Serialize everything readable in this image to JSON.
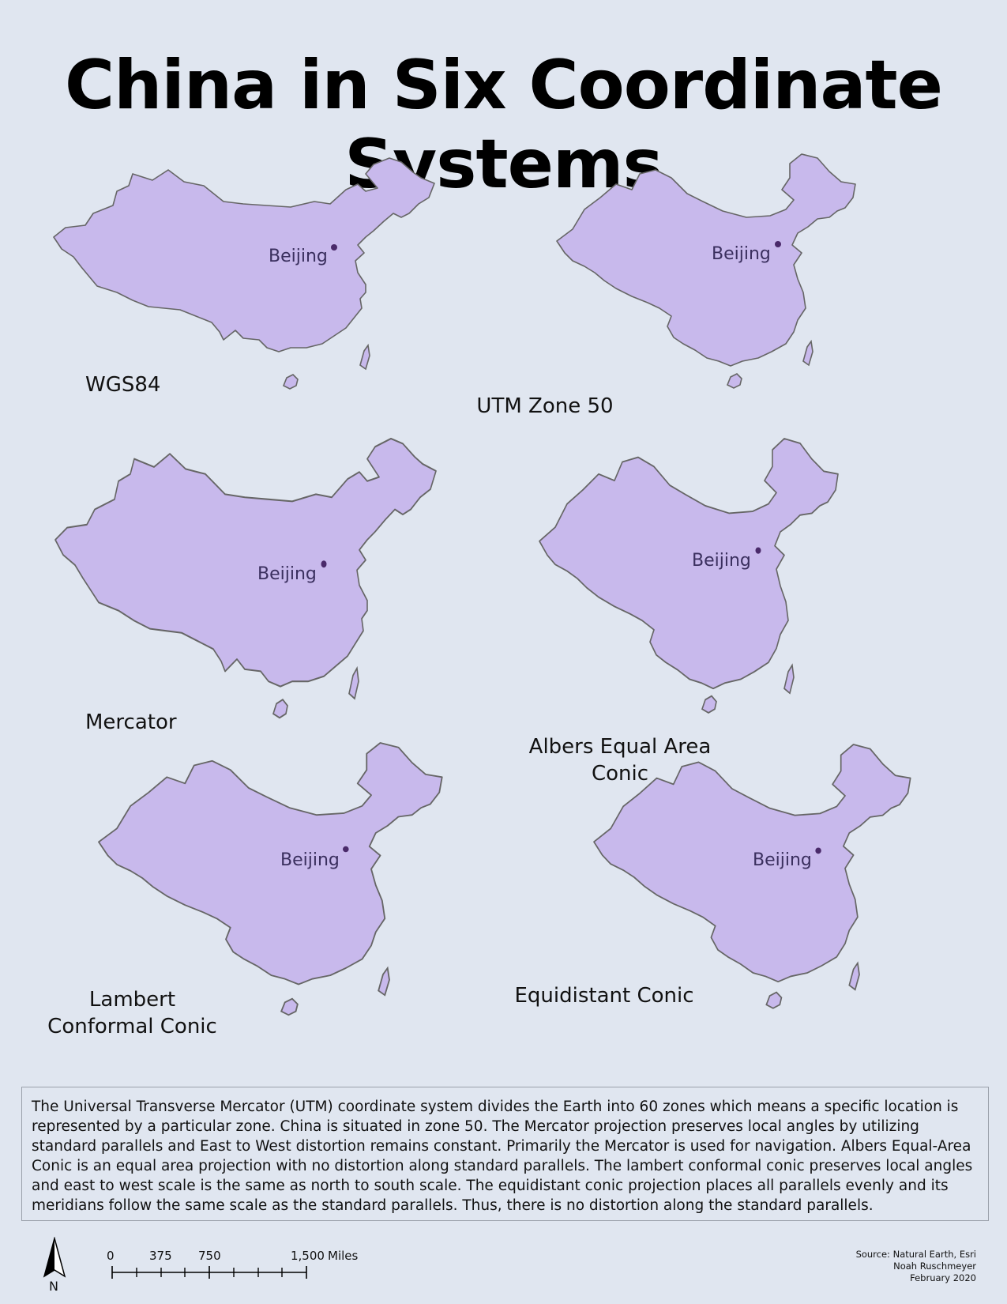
{
  "title": "China in Six Coordinate Systems",
  "city_label": "Beijing",
  "projections": [
    {
      "label": "WGS84"
    },
    {
      "label": "UTM Zone 50"
    },
    {
      "label": "Mercator"
    },
    {
      "label": "Albers Equal Area Conic"
    },
    {
      "label": "Lambert Conformal Conic"
    },
    {
      "label": "Equidistant Conic"
    }
  ],
  "description": "The Universal Transverse Mercator (UTM) coordinate system divides the Earth into 60 zones which means a specific location is represented by a particular zone. China is situated in zone 50. The Mercator projection preserves local angles by utilizing standard parallels and East to West distortion remains constant. Primarily the Mercator is used for navigation. Albers Equal-Area Conic is an equal area projection with no distortion along standard parallels. The lambert conformal conic preserves local angles and east to west scale is the same as north to south scale. The equidistant conic projection places all parallels evenly and its meridians follow the same scale as the standard parallels. Thus, there is no distortion along the standard parallels.",
  "north_arrow": {
    "letter": "N",
    "icon": "north-arrow-icon"
  },
  "scale_bar": {
    "ticks": [
      "0",
      "375",
      "750",
      "1,500"
    ],
    "unit": "Miles"
  },
  "credits": {
    "source": "Source: Natural Earth, Esri",
    "author": "Noah Ruschmeyer",
    "date": "February 2020"
  },
  "colors": {
    "background": "#e0e6f0",
    "land_fill": "#c8b9ec",
    "outline": "#666666",
    "city_dot": "#4a2a6a",
    "city_text": "#3a2f5e"
  }
}
